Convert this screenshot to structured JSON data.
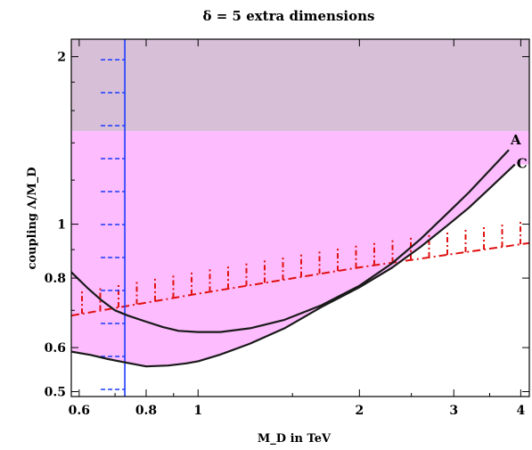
{
  "chart_data": {
    "type": "line",
    "title": "δ = 5 extra dimensions",
    "xlabel": "M_D in TeV",
    "ylabel": "coupling Λ/M_D",
    "xscale": "log",
    "yscale": "log",
    "xlim": [
      0.58,
      4.15
    ],
    "ylim": [
      0.49,
      2.15
    ],
    "x_ticks": [
      0.6,
      0.8,
      1,
      2,
      3,
      4
    ],
    "x_tick_labels": [
      "0.6",
      "0.8",
      "1",
      "2",
      "3",
      "4"
    ],
    "y_ticks": [
      0.5,
      0.6,
      0.8,
      1,
      2
    ],
    "y_tick_labels": [
      "0.5",
      "0.6",
      "0.8",
      "1",
      "2"
    ],
    "grid": false,
    "regions": [
      {
        "kind": "band",
        "ymin": 1.47,
        "ymax": 2.15,
        "color": "#d7bfd8"
      },
      {
        "kind": "band",
        "ymin": 0.49,
        "ymax": 1.47,
        "color": "#fdbcfd",
        "boundary_curve": "C"
      }
    ],
    "series": [
      {
        "name": "A",
        "color": "#1a1a1a",
        "x": [
          0.58,
          0.62,
          0.66,
          0.7,
          0.74,
          0.8,
          0.86,
          0.92,
          1.0,
          1.1,
          1.25,
          1.45,
          1.7,
          2.0,
          2.3,
          2.6,
          2.9,
          3.2,
          3.5,
          3.8
        ],
        "y": [
          0.82,
          0.77,
          0.73,
          0.7,
          0.685,
          0.668,
          0.653,
          0.643,
          0.64,
          0.64,
          0.65,
          0.673,
          0.715,
          0.775,
          0.85,
          0.94,
          1.04,
          1.14,
          1.25,
          1.36
        ]
      },
      {
        "name": "C",
        "color": "#1a1a1a",
        "x": [
          0.58,
          0.63,
          0.68,
          0.74,
          0.8,
          0.88,
          0.95,
          1.0,
          1.1,
          1.25,
          1.45,
          1.7,
          2.0,
          2.3,
          2.6,
          2.9,
          3.2,
          3.5,
          3.9
        ],
        "y": [
          0.59,
          0.582,
          0.572,
          0.563,
          0.555,
          0.557,
          0.562,
          0.567,
          0.583,
          0.61,
          0.65,
          0.71,
          0.77,
          0.835,
          0.91,
          0.99,
          1.07,
          1.16,
          1.28
        ]
      },
      {
        "name": "",
        "style": "dash-dot",
        "hatched": "up",
        "color": "#e01010",
        "x": [
          0.58,
          1.0,
          2.0,
          4.15
        ],
        "y": [
          0.685,
          0.75,
          0.836,
          0.925
        ]
      }
    ],
    "vlines": [
      {
        "x": 0.73,
        "color": "#1b3aff",
        "style": "solid",
        "side_hatch": "left"
      }
    ],
    "labels": [
      {
        "text": "A",
        "series": "A"
      },
      {
        "text": "C",
        "series": "C"
      }
    ]
  }
}
